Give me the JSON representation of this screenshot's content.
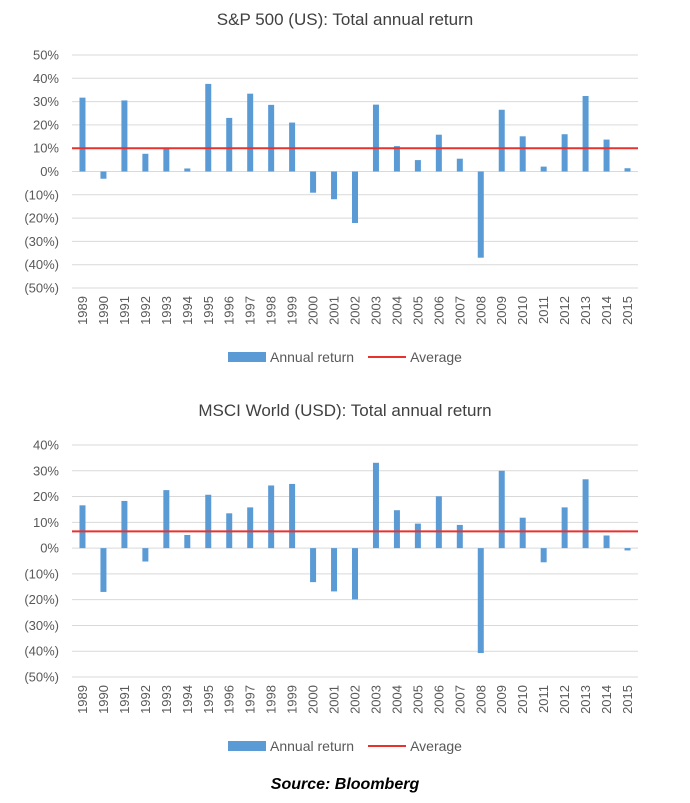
{
  "colors": {
    "bar": "#5B9BD5",
    "average": "#E8322E",
    "grid": "#D9D9D9",
    "text": "#595959"
  },
  "chart_data": [
    {
      "type": "bar",
      "title": "S&P 500 (US): Total annual return",
      "categories": [
        "1989",
        "1990",
        "1991",
        "1992",
        "1993",
        "1994",
        "1995",
        "1996",
        "1997",
        "1998",
        "1999",
        "2000",
        "2001",
        "2002",
        "2003",
        "2004",
        "2005",
        "2006",
        "2007",
        "2008",
        "2009",
        "2010",
        "2011",
        "2012",
        "2013",
        "2014",
        "2015"
      ],
      "series": [
        {
          "name": "Annual return",
          "values": [
            31.7,
            -3.1,
            30.5,
            7.6,
            10.1,
            1.3,
            37.6,
            23.0,
            33.4,
            28.6,
            21.0,
            -9.1,
            -11.9,
            -22.1,
            28.7,
            10.9,
            4.9,
            15.8,
            5.5,
            -37.0,
            26.5,
            15.1,
            2.1,
            16.0,
            32.4,
            13.7,
            1.4
          ]
        },
        {
          "name": "Average",
          "type": "line",
          "value": 10
        }
      ],
      "yticks": [
        "50%",
        "40%",
        "30%",
        "20%",
        "10%",
        "0%",
        "(10%)",
        "(20%)",
        "(30%)",
        "(40%)",
        "(50%)"
      ],
      "ylim": [
        -50,
        50
      ],
      "grid": true,
      "legend": "bottom",
      "legend_labels": [
        "Annual return",
        "Average"
      ]
    },
    {
      "type": "bar",
      "title": "MSCI World (USD): Total annual return",
      "categories": [
        "1989",
        "1990",
        "1991",
        "1992",
        "1993",
        "1994",
        "1995",
        "1996",
        "1997",
        "1998",
        "1999",
        "2000",
        "2001",
        "2002",
        "2003",
        "2004",
        "2005",
        "2006",
        "2007",
        "2008",
        "2009",
        "2010",
        "2011",
        "2012",
        "2013",
        "2014",
        "2015"
      ],
      "series": [
        {
          "name": "Annual return",
          "values": [
            16.6,
            -17.0,
            18.3,
            -5.2,
            22.5,
            5.1,
            20.7,
            13.5,
            15.8,
            24.3,
            24.9,
            -13.2,
            -16.8,
            -19.9,
            33.1,
            14.7,
            9.5,
            20.1,
            9.0,
            -40.7,
            30.0,
            11.8,
            -5.5,
            15.8,
            26.7,
            4.9,
            -0.9
          ]
        },
        {
          "name": "Average",
          "type": "line",
          "value": 6.5
        }
      ],
      "yticks": [
        "40%",
        "30%",
        "20%",
        "10%",
        "0%",
        "(10%)",
        "(20%)",
        "(30%)",
        "(40%)",
        "(50%)"
      ],
      "ylim": [
        -50,
        40
      ],
      "grid": true,
      "legend": "bottom",
      "legend_labels": [
        "Annual return",
        "Average"
      ]
    }
  ],
  "source": "Source: Bloomberg"
}
